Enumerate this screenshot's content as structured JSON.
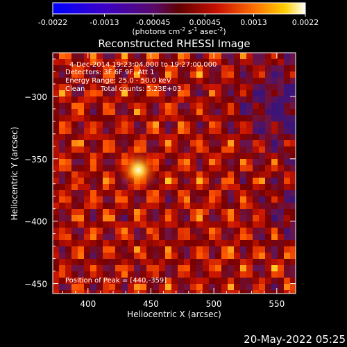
{
  "chart_data": {
    "type": "heatmap",
    "title": "Reconstructed RHESSI Image",
    "xlabel": "Heliocentric X (arcsec)",
    "ylabel": "Heliocentric Y (arcsec)",
    "xlim": [
      372,
      565
    ],
    "ylim": [
      -458,
      -265
    ],
    "x_ticks": [
      400,
      450,
      500,
      550
    ],
    "y_ticks": [
      -300,
      -350,
      -400,
      -450
    ],
    "colorbar": {
      "range": [
        -0.0022,
        0.0022
      ],
      "ticks": [
        "-0.0022",
        "-0.0013",
        "-0.00045",
        "0.00045",
        "0.0013",
        "0.0022"
      ],
      "unit_prefix": "(photons cm",
      "unit_exp1": "-2",
      "unit_mid": " s",
      "unit_exp2": "-1",
      "unit_mid2": " asec",
      "unit_exp3": "-2",
      "unit_suffix": ")"
    },
    "annotations": {
      "time_range": "4-Dec-2014 19:23:04.000 to 19:27:00.000",
      "detectors": "Detectors: 3F 6F 9F, Att 1",
      "energy_range": "Energy Range: 25.0 - 50.0 keV",
      "clean": "Clean",
      "total_counts": "Total counts: 5.23E+03",
      "peak_position": "Position of Peak = [440,-359]"
    },
    "peak": [
      440,
      -359
    ],
    "grid": false
  },
  "footer": {
    "date": "20-May-2022 05:25"
  }
}
